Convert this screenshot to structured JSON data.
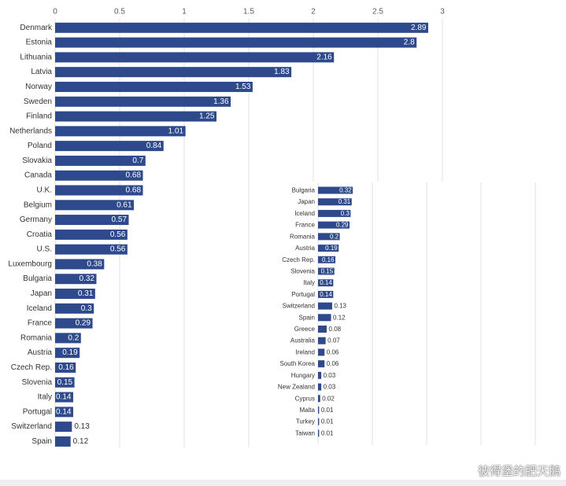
{
  "chart_data": [
    {
      "type": "bar",
      "orientation": "horizontal",
      "xlim": [
        0,
        3
      ],
      "x_ticks": [
        0,
        0.5,
        1,
        1.5,
        2,
        2.5,
        3
      ],
      "grid": true,
      "bar_color": "#2e4a8c",
      "categories": [
        "Denmark",
        "Estonia",
        "Lithuania",
        "Latvia",
        "Norway",
        "Sweden",
        "Finland",
        "Netherlands",
        "Poland",
        "Slovakia",
        "Canada",
        "U.K.",
        "Belgium",
        "Germany",
        "Croatia",
        "U.S.",
        "Luxembourg",
        "Bulgaria",
        "Japan",
        "Iceland",
        "France",
        "Romania",
        "Austria",
        "Czech Rep.",
        "Slovenia",
        "Italy",
        "Portugal",
        "Switzerland",
        "Spain"
      ],
      "values": [
        2.89,
        2.8,
        2.16,
        1.83,
        1.53,
        1.36,
        1.25,
        1.01,
        0.84,
        0.7,
        0.68,
        0.68,
        0.61,
        0.57,
        0.56,
        0.56,
        0.38,
        0.32,
        0.31,
        0.3,
        0.29,
        0.2,
        0.19,
        0.16,
        0.15,
        0.14,
        0.14,
        0.13,
        0.12
      ]
    },
    {
      "type": "bar",
      "orientation": "horizontal",
      "grid": true,
      "bar_color": "#2e4a8c",
      "categories": [
        "Bulgaria",
        "Japan",
        "Iceland",
        "France",
        "Romania",
        "Austria",
        "Czech Rep.",
        "Slovenia",
        "Italy",
        "Portugal",
        "Switzerland",
        "Spain",
        "Greece",
        "Australia",
        "Ireland",
        "South Korea",
        "Hungary",
        "New Zealand",
        "Cyprus",
        "Malta",
        "Turkey",
        "Taiwan"
      ],
      "values": [
        0.32,
        0.31,
        0.3,
        0.29,
        0.2,
        0.19,
        0.16,
        0.15,
        0.14,
        0.14,
        0.13,
        0.12,
        0.08,
        0.07,
        0.06,
        0.06,
        0.03,
        0.03,
        0.02,
        0.01,
        0.01,
        0.01
      ]
    }
  ],
  "watermark": "彼得堡的肥天鹅"
}
